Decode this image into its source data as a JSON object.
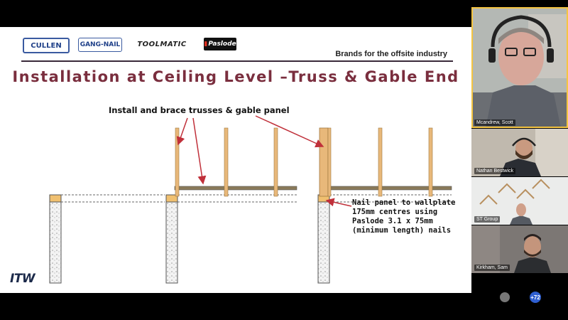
{
  "slide": {
    "brands": {
      "cullen": "CULLEN",
      "gangnail": "GANG-NAIL",
      "toolmatic": "TOOLMATIC",
      "paslode": "Paslode"
    },
    "tagline": "Brands for the offsite industry",
    "title": "Installation at Ceiling Level –Truss & Gable End",
    "label_install": "Install and brace trusses & gable panel",
    "label_nail": [
      "Nail panel to wallplate",
      "175mm centres using",
      "Paslode 3.1 x 75mm",
      "(minimum length) nails"
    ],
    "footer_logo": "ITW"
  },
  "participants": [
    {
      "name": "Mcandrew, Scott",
      "active": true
    },
    {
      "name": "Nathan Bestwick",
      "active": false
    },
    {
      "name": "ST Group",
      "active": false
    },
    {
      "name": "Kirkham, Sam",
      "active": false
    }
  ],
  "footer": {
    "more_count": "+72"
  },
  "colors": {
    "title": "#7a2e3e",
    "timber": "#e8b87a",
    "arrow": "#c0303a",
    "brand_blue": "#1e3f88"
  }
}
